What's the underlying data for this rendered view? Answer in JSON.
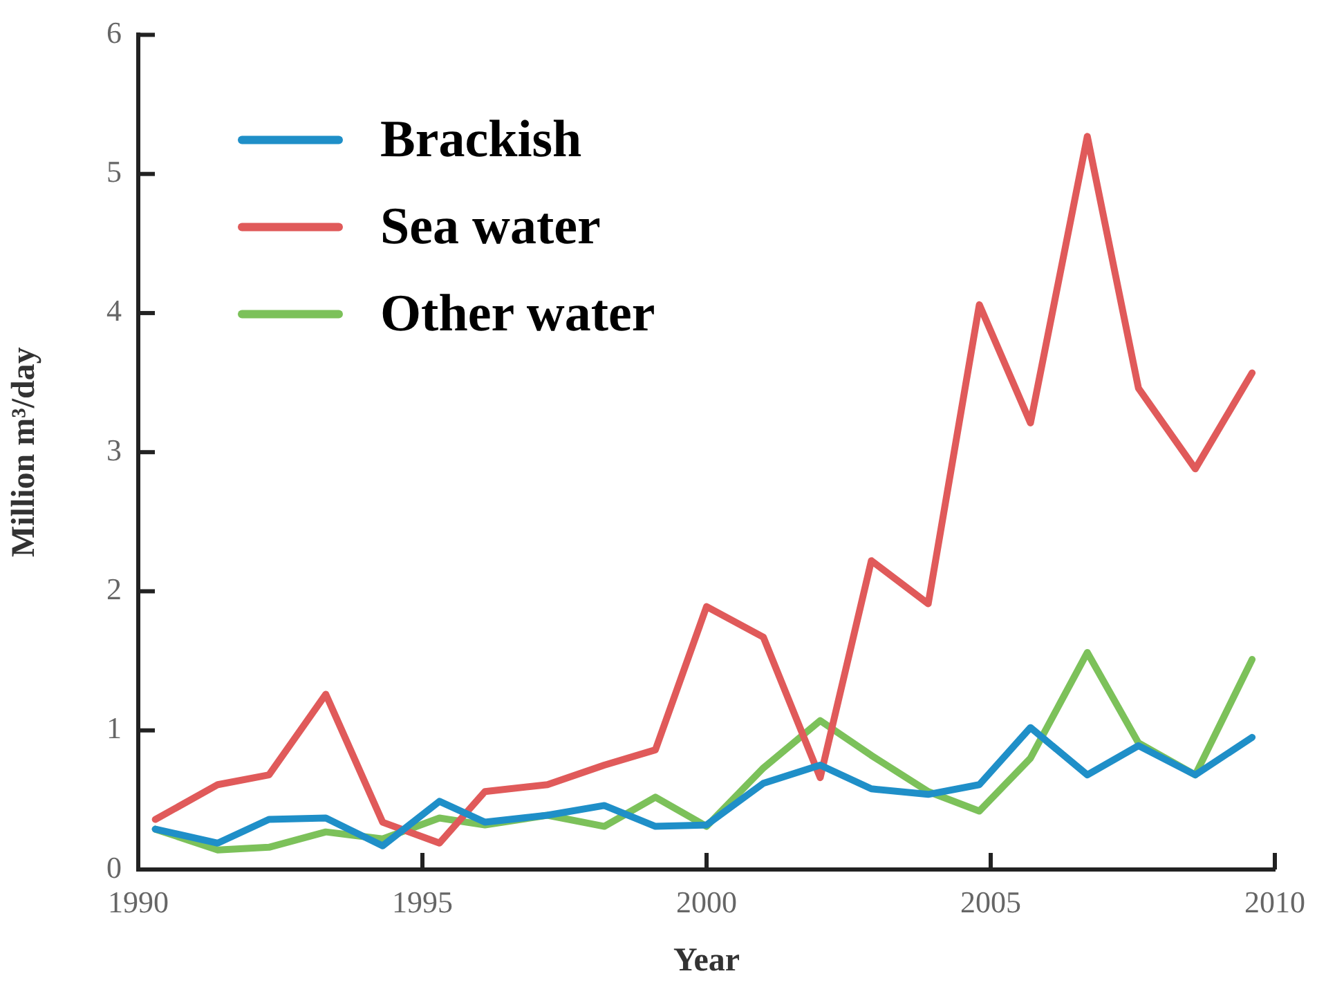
{
  "chart_data": {
    "type": "line",
    "xlabel": "Year",
    "ylabel": "Million m³/day",
    "x": [
      1990.3,
      1991.4,
      1992.3,
      1993.3,
      1994.3,
      1995.3,
      1996.1,
      1997.2,
      1998.2,
      1999.1,
      2000,
      2001,
      2002,
      2002.9,
      2003.9,
      2004.8,
      2005.7,
      2006.7,
      2007.6,
      2008.6,
      2009.6
    ],
    "xlim": [
      1990,
      2010
    ],
    "xticks": [
      1990,
      1995,
      2000,
      2005,
      2010
    ],
    "ylim": [
      0,
      6
    ],
    "yticks": [
      0,
      1,
      2,
      3,
      4,
      5,
      6
    ],
    "grid": false,
    "legend": "top left",
    "marker": "none",
    "line_style": "solid",
    "series": [
      {
        "name": "Brackish",
        "color": "#1f8fc8",
        "values": [
          0.29,
          0.19,
          0.36,
          0.37,
          0.17,
          0.49,
          0.34,
          0.39,
          0.46,
          0.31,
          0.32,
          0.62,
          0.75,
          0.58,
          0.54,
          0.61,
          1.02,
          0.68,
          0.89,
          0.68,
          0.95
        ]
      },
      {
        "name": "Sea water",
        "color": "#e05a5a",
        "values": [
          0.36,
          0.61,
          0.68,
          1.26,
          0.34,
          0.19,
          0.56,
          0.61,
          0.75,
          0.86,
          1.89,
          1.67,
          0.66,
          2.22,
          1.91,
          4.06,
          3.21,
          5.27,
          3.46,
          2.88,
          3.57
        ]
      },
      {
        "name": "Other water",
        "color": "#7cc15a",
        "values": [
          0.29,
          0.14,
          0.16,
          0.27,
          0.22,
          0.37,
          0.32,
          0.39,
          0.31,
          0.52,
          0.31,
          0.73,
          1.07,
          0.82,
          0.56,
          0.42,
          0.8,
          1.56,
          0.91,
          0.68,
          1.51
        ]
      }
    ]
  }
}
